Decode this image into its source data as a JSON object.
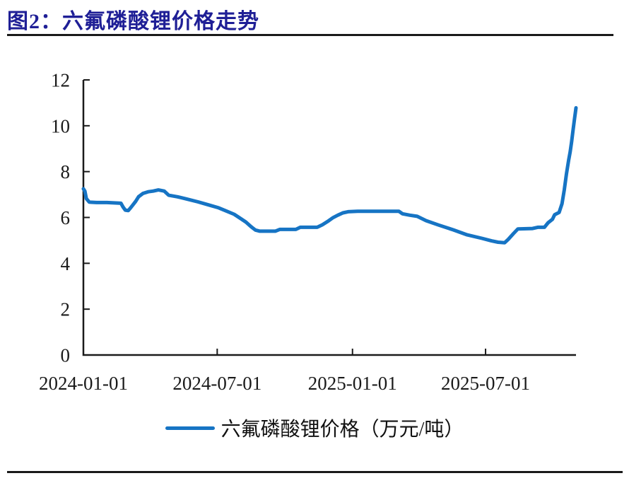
{
  "figure": {
    "title": "图2：六氟磷酸锂价格走势",
    "title_color": "#1F1F96"
  },
  "chart_data": {
    "type": "line",
    "title": "图2：六氟磷酸锂价格走势",
    "legend": "六氟磷酸锂价格（万元/吨）",
    "legend_position": "bottom",
    "grid": false,
    "xlabel": "",
    "ylabel": "",
    "ylim": [
      0,
      12
    ],
    "yticks": [
      0,
      2,
      4,
      6,
      8,
      10,
      12
    ],
    "x_domain": [
      "2024-01-01",
      "2025-11-01"
    ],
    "xtick_labels": [
      "2024-01-01",
      "2024-07-01",
      "2025-01-01",
      "2025-07-01"
    ],
    "axis_color": "#1a1a1a",
    "series": [
      {
        "name": "六氟磷酸锂价格（万元/吨）",
        "color": "#1674C4",
        "unit": "万元/吨",
        "points": [
          [
            "2024-01-01",
            7.25
          ],
          [
            "2024-01-03",
            7.15
          ],
          [
            "2024-01-05",
            6.82
          ],
          [
            "2024-01-09",
            6.67
          ],
          [
            "2024-01-19",
            6.65
          ],
          [
            "2024-02-02",
            6.65
          ],
          [
            "2024-02-21",
            6.62
          ],
          [
            "2024-02-24",
            6.45
          ],
          [
            "2024-02-27",
            6.32
          ],
          [
            "2024-03-02",
            6.3
          ],
          [
            "2024-03-06",
            6.45
          ],
          [
            "2024-03-12",
            6.7
          ],
          [
            "2024-03-16",
            6.9
          ],
          [
            "2024-03-22",
            7.05
          ],
          [
            "2024-03-29",
            7.12
          ],
          [
            "2024-04-05",
            7.15
          ],
          [
            "2024-04-12",
            7.2
          ],
          [
            "2024-04-20",
            7.15
          ],
          [
            "2024-04-26",
            6.97
          ],
          [
            "2024-05-08",
            6.9
          ],
          [
            "2024-05-21",
            6.8
          ],
          [
            "2024-06-05",
            6.68
          ],
          [
            "2024-06-19",
            6.55
          ],
          [
            "2024-07-03",
            6.42
          ],
          [
            "2024-07-12",
            6.3
          ],
          [
            "2024-07-24",
            6.14
          ],
          [
            "2024-08-02",
            5.95
          ],
          [
            "2024-08-09",
            5.8
          ],
          [
            "2024-08-16",
            5.6
          ],
          [
            "2024-08-22",
            5.45
          ],
          [
            "2024-08-28",
            5.4
          ],
          [
            "2024-09-18",
            5.4
          ],
          [
            "2024-09-24",
            5.48
          ],
          [
            "2024-10-16",
            5.48
          ],
          [
            "2024-10-22",
            5.57
          ],
          [
            "2024-11-14",
            5.57
          ],
          [
            "2024-11-21",
            5.68
          ],
          [
            "2024-11-28",
            5.82
          ],
          [
            "2024-12-05",
            5.98
          ],
          [
            "2024-12-12",
            6.1
          ],
          [
            "2024-12-19",
            6.2
          ],
          [
            "2024-12-26",
            6.25
          ],
          [
            "2025-01-08",
            6.27
          ],
          [
            "2025-03-05",
            6.27
          ],
          [
            "2025-03-10",
            6.16
          ],
          [
            "2025-03-20",
            6.1
          ],
          [
            "2025-03-30",
            6.05
          ],
          [
            "2025-04-11",
            5.86
          ],
          [
            "2025-04-28",
            5.67
          ],
          [
            "2025-05-18",
            5.46
          ],
          [
            "2025-06-06",
            5.24
          ],
          [
            "2025-06-26",
            5.09
          ],
          [
            "2025-07-09",
            4.98
          ],
          [
            "2025-07-18",
            4.92
          ],
          [
            "2025-07-27",
            4.9
          ],
          [
            "2025-08-01",
            5.05
          ],
          [
            "2025-08-08",
            5.3
          ],
          [
            "2025-08-14",
            5.5
          ],
          [
            "2025-09-03",
            5.52
          ],
          [
            "2025-09-10",
            5.57
          ],
          [
            "2025-09-19",
            5.57
          ],
          [
            "2025-09-24",
            5.77
          ],
          [
            "2025-09-30",
            5.92
          ],
          [
            "2025-10-03",
            6.12
          ],
          [
            "2025-10-09",
            6.22
          ],
          [
            "2025-10-13",
            6.6
          ],
          [
            "2025-10-16",
            7.2
          ],
          [
            "2025-10-19",
            7.9
          ],
          [
            "2025-10-22",
            8.5
          ],
          [
            "2025-10-24",
            8.85
          ],
          [
            "2025-10-26",
            9.3
          ],
          [
            "2025-10-28",
            9.8
          ],
          [
            "2025-10-30",
            10.3
          ],
          [
            "2025-10-31",
            10.55
          ],
          [
            "2025-11-01",
            10.78
          ]
        ]
      }
    ]
  }
}
